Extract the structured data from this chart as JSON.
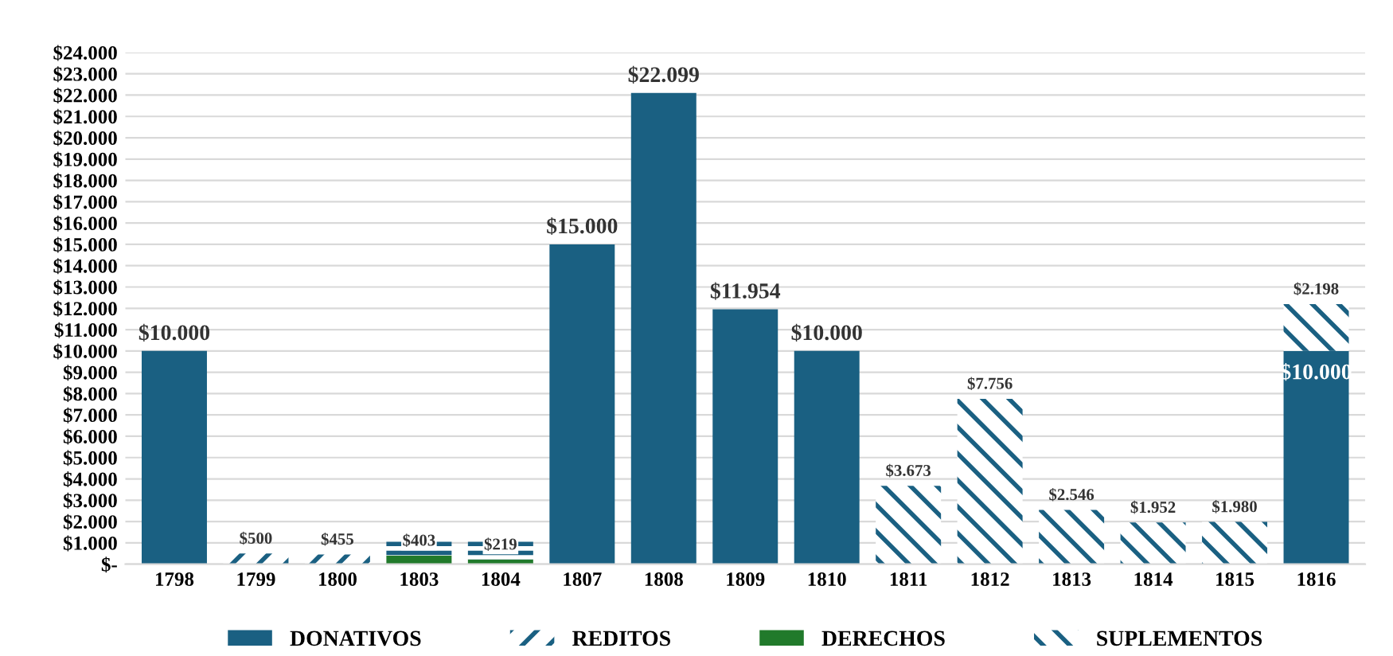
{
  "chart_data": {
    "type": "bar",
    "stacked": true,
    "categories": [
      "1798",
      "1799",
      "1800",
      "1803",
      "1804",
      "1807",
      "1808",
      "1809",
      "1810",
      "1811",
      "1812",
      "1813",
      "1814",
      "1815",
      "1816"
    ],
    "series": [
      {
        "name": "DONATIVOS",
        "color": "#1a6082",
        "values": [
          10000,
          null,
          null,
          null,
          null,
          15000,
          22099,
          11954,
          10000,
          null,
          null,
          null,
          null,
          null,
          10000
        ],
        "value_labels": [
          "$10.000",
          null,
          null,
          null,
          null,
          "$15.000",
          "$22.099",
          "$11.954",
          "$10.000",
          null,
          null,
          null,
          null,
          null,
          "$10.000"
        ]
      },
      {
        "name": "REDITOS",
        "color": "#1a6082",
        "values": [
          null,
          500,
          455,
          null,
          null,
          null,
          null,
          null,
          null,
          null,
          null,
          null,
          null,
          null,
          null
        ],
        "value_labels": [
          null,
          "$500",
          "$455",
          null,
          null,
          null,
          null,
          null,
          null,
          null,
          null,
          null,
          null,
          null,
          null
        ]
      },
      {
        "name": "DERECHOS",
        "color": "#217a2b",
        "values": [
          null,
          null,
          null,
          403,
          219,
          null,
          null,
          null,
          null,
          null,
          null,
          null,
          null,
          null,
          null
        ],
        "value_labels": [
          null,
          null,
          null,
          "$403",
          "$219",
          null,
          null,
          null,
          null,
          null,
          null,
          null,
          null,
          null,
          null
        ]
      },
      {
        "color": "#1a6082",
        "values": [
          null,
          null,
          null,
          800,
          1000,
          null,
          null,
          null,
          null,
          null,
          null,
          null,
          null,
          null,
          null
        ]
      },
      {
        "name": "SUPLEMENTOS",
        "color": "#1a6082",
        "values": [
          null,
          null,
          null,
          null,
          null,
          null,
          null,
          null,
          null,
          3673,
          7756,
          2546,
          1952,
          1980,
          2198
        ],
        "value_labels": [
          null,
          null,
          null,
          null,
          null,
          null,
          null,
          null,
          null,
          "$3.673",
          "$7.756",
          "$2.546",
          "$1.952",
          "$1.980",
          "$2.198"
        ]
      }
    ],
    "ylim": [
      0,
      24000
    ],
    "yticks": [
      {
        "value": 0,
        "label": "$-"
      },
      {
        "value": 1000,
        "label": "$1.000"
      },
      {
        "value": 2000,
        "label": "$2.000"
      },
      {
        "value": 3000,
        "label": "$3.000"
      },
      {
        "value": 4000,
        "label": "$4.000"
      },
      {
        "value": 5000,
        "label": "$5.000"
      },
      {
        "value": 6000,
        "label": "$6.000"
      },
      {
        "value": 7000,
        "label": "$7.000"
      },
      {
        "value": 8000,
        "label": "$8.000"
      },
      {
        "value": 9000,
        "label": "$9.000"
      },
      {
        "value": 10000,
        "label": "$10.000"
      },
      {
        "value": 11000,
        "label": "$11.000"
      },
      {
        "value": 12000,
        "label": "$12.000"
      },
      {
        "value": 13000,
        "label": "$13.000"
      },
      {
        "value": 14000,
        "label": "$14.000"
      },
      {
        "value": 15000,
        "label": "$15.000"
      },
      {
        "value": 16000,
        "label": "$16.000"
      },
      {
        "value": 17000,
        "label": "$17.000"
      },
      {
        "value": 18000,
        "label": "$18.000"
      },
      {
        "value": 19000,
        "label": "$19.000"
      },
      {
        "value": 20000,
        "label": "$20.000"
      },
      {
        "value": 21000,
        "label": "$21.000"
      },
      {
        "value": 22000,
        "label": "$22.000"
      },
      {
        "value": 23000,
        "label": "$23.000"
      },
      {
        "value": 24000,
        "label": "$24.000"
      }
    ],
    "grid": "y",
    "legend": "bottom"
  }
}
